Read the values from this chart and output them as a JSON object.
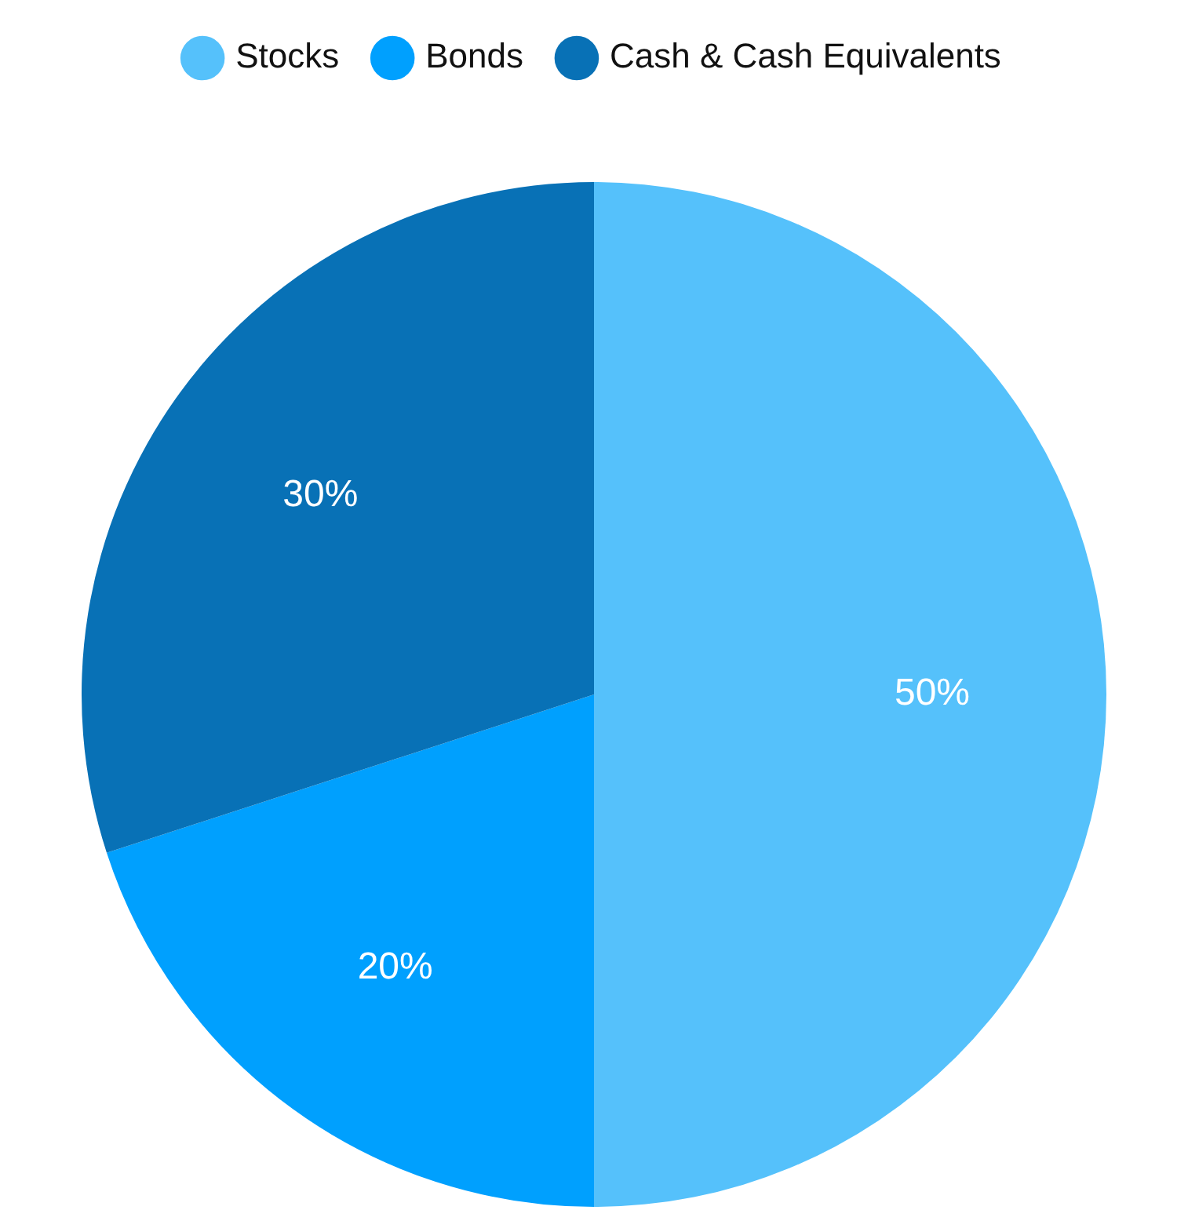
{
  "chart_data": {
    "type": "pie",
    "categories": [
      "Stocks",
      "Bonds",
      "Cash & Cash Equivalents"
    ],
    "values": [
      50,
      20,
      30
    ],
    "colors": [
      "#55c1fb",
      "#00a0fe",
      "#0871b6"
    ],
    "value_labels": [
      "50%",
      "20%",
      "30%"
    ],
    "legend": "top"
  }
}
